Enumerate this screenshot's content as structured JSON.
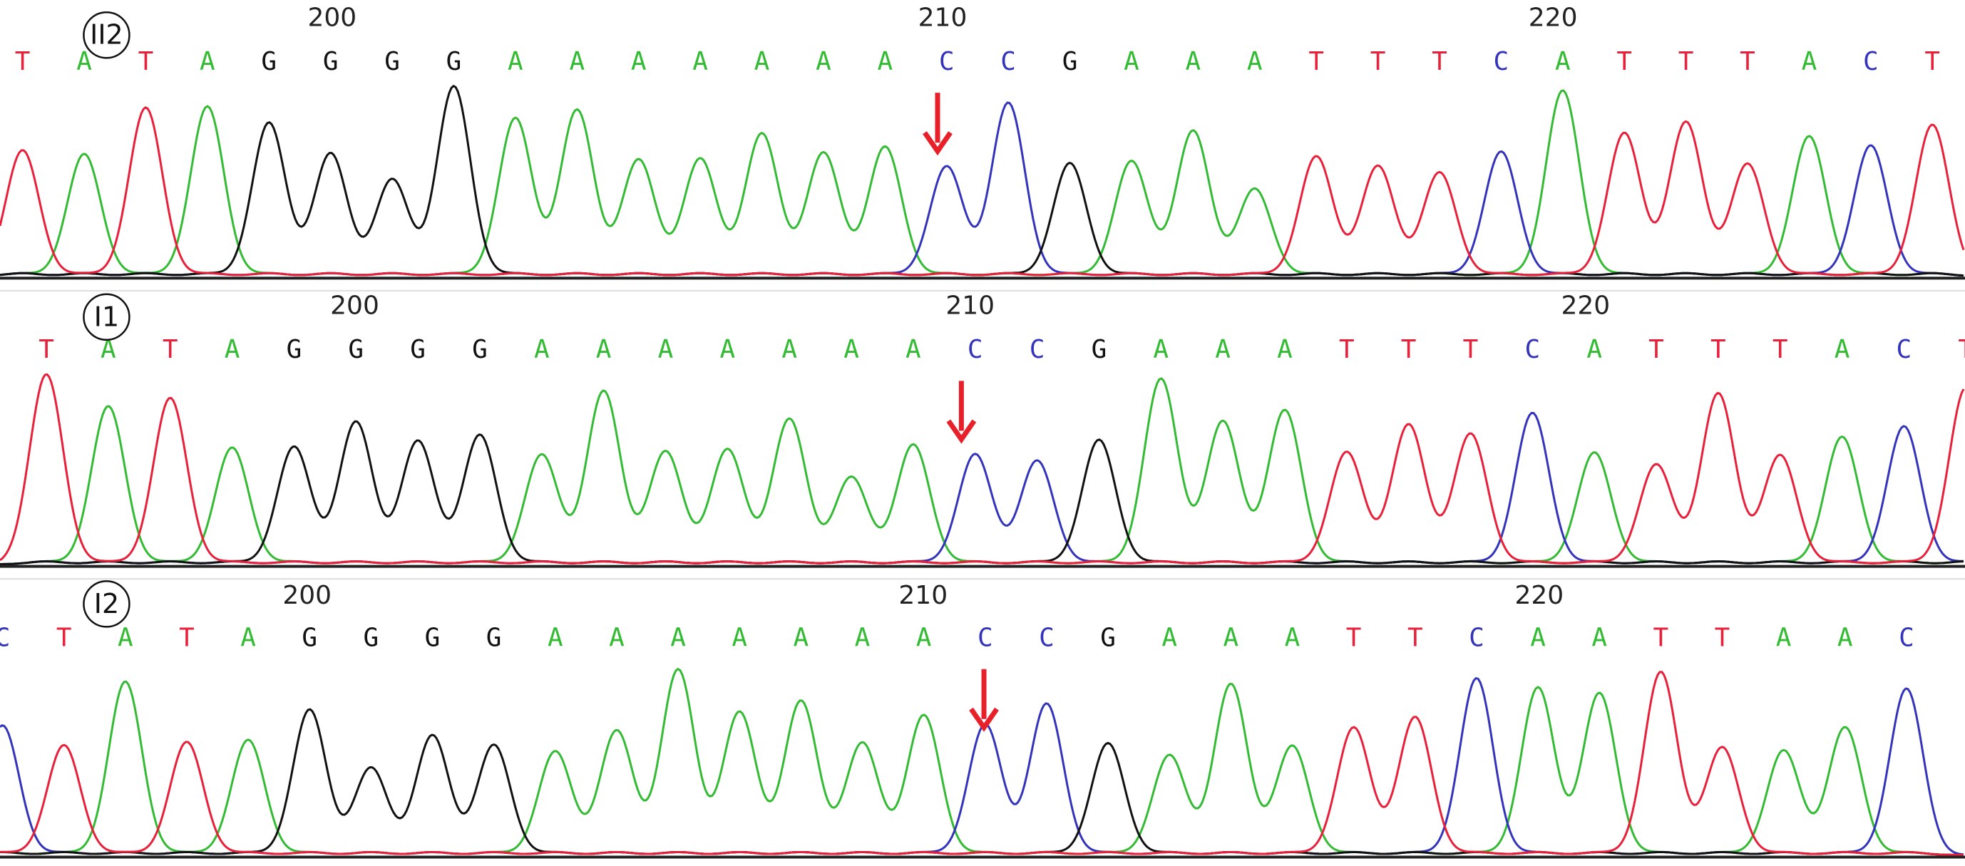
{
  "panels": [
    {
      "label": "II2",
      "positions": [
        200,
        210,
        220
      ],
      "bases": [
        "T",
        "A",
        "T",
        "A",
        "G",
        "G",
        "G",
        "G",
        "A",
        "A",
        "A",
        "A",
        "A",
        "A",
        "A",
        "C",
        "C",
        "G",
        "A",
        "A",
        "A",
        "T",
        "T",
        "T",
        "C",
        "A",
        "T",
        "T",
        "T",
        "A",
        "C",
        "T"
      ]
    },
    {
      "label": "I1",
      "positions": [
        200,
        210,
        220
      ],
      "bases": [
        "T",
        "A",
        "T",
        "A",
        "G",
        "G",
        "G",
        "G",
        "A",
        "A",
        "A",
        "A",
        "A",
        "A",
        "A",
        "C",
        "C",
        "G",
        "A",
        "A",
        "A",
        "T",
        "T",
        "T",
        "C",
        "A",
        "T",
        "T",
        "T",
        "A",
        "C",
        "T"
      ]
    },
    {
      "label": "I2",
      "positions": [
        200,
        210,
        220
      ],
      "bases": [
        "C",
        "T",
        "A",
        "T",
        "A",
        "G",
        "G",
        "G",
        "G",
        "A",
        "A",
        "A",
        "A",
        "A",
        "A",
        "A",
        "C",
        "C",
        "G",
        "A",
        "A",
        "A",
        "T",
        "T",
        "C",
        "A",
        "A",
        "T",
        "T",
        "A",
        "A",
        "C"
      ]
    }
  ]
}
